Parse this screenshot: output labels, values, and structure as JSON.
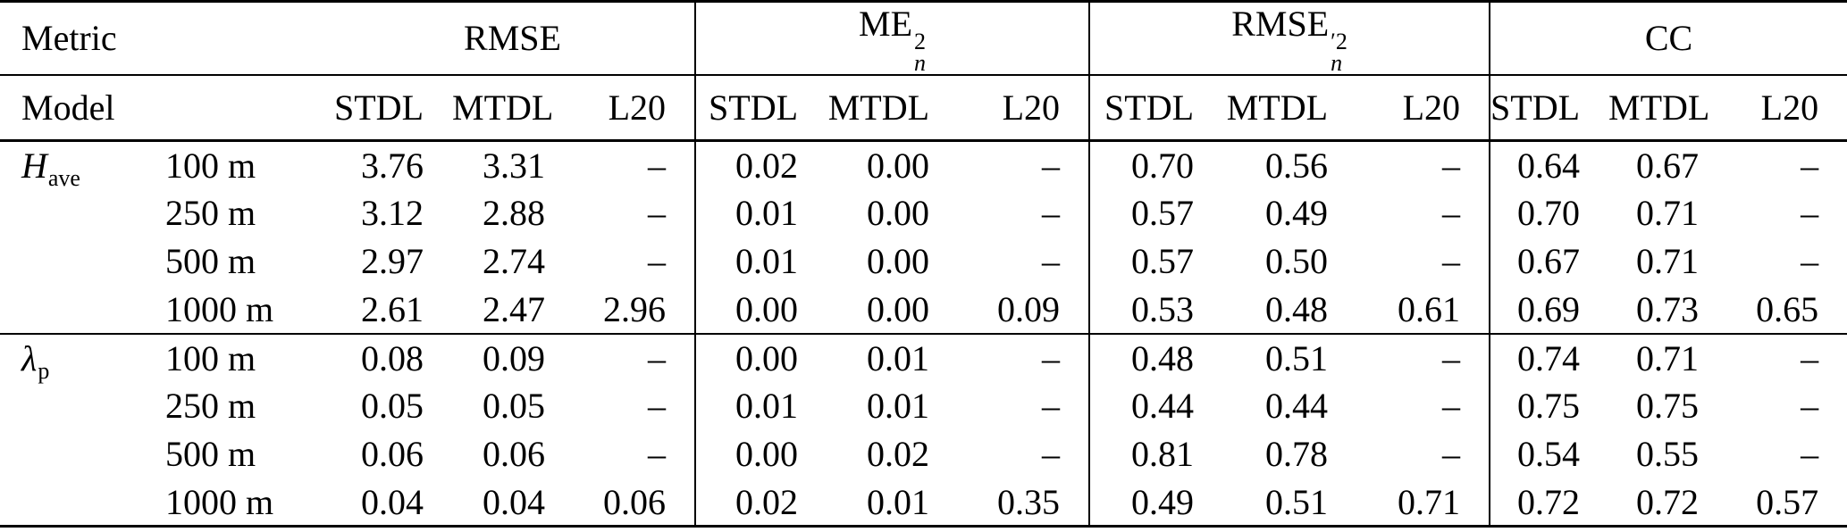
{
  "table": {
    "header": {
      "metric_label": "Metric",
      "model_label": "Model",
      "groups": [
        {
          "id": "rmse",
          "base": "RMSE",
          "prime": "",
          "sup": "",
          "sub": ""
        },
        {
          "id": "me2n",
          "base": "ME",
          "prime": "",
          "sup": "2",
          "sub": "n"
        },
        {
          "id": "rmse2n",
          "base": "RMSE",
          "prime": "′",
          "sup": "2",
          "sub": "n"
        },
        {
          "id": "cc",
          "base": "CC",
          "prime": "",
          "sup": "",
          "sub": ""
        }
      ],
      "sub_columns": [
        "STDL",
        "MTDL",
        "L20"
      ]
    },
    "sections": [
      {
        "metric": {
          "id": "h-ave",
          "base": "H",
          "sub": "ave",
          "italic": true
        },
        "rows": [
          {
            "resolution": "100 m",
            "values": [
              [
                "3.76",
                "3.31",
                "–"
              ],
              [
                "0.02",
                "0.00",
                "–"
              ],
              [
                "0.70",
                "0.56",
                "–"
              ],
              [
                "0.64",
                "0.67",
                "–"
              ]
            ]
          },
          {
            "resolution": "250 m",
            "values": [
              [
                "3.12",
                "2.88",
                "–"
              ],
              [
                "0.01",
                "0.00",
                "–"
              ],
              [
                "0.57",
                "0.49",
                "–"
              ],
              [
                "0.70",
                "0.71",
                "–"
              ]
            ]
          },
          {
            "resolution": "500 m",
            "values": [
              [
                "2.97",
                "2.74",
                "–"
              ],
              [
                "0.01",
                "0.00",
                "–"
              ],
              [
                "0.57",
                "0.50",
                "–"
              ],
              [
                "0.67",
                "0.71",
                "–"
              ]
            ]
          },
          {
            "resolution": "1000 m",
            "values": [
              [
                "2.61",
                "2.47",
                "2.96"
              ],
              [
                "0.00",
                "0.00",
                "0.09"
              ],
              [
                "0.53",
                "0.48",
                "0.61"
              ],
              [
                "0.69",
                "0.73",
                "0.65"
              ]
            ]
          }
        ]
      },
      {
        "metric": {
          "id": "lambda-p",
          "base": "λ",
          "sub": "p",
          "italic": true
        },
        "rows": [
          {
            "resolution": "100 m",
            "values": [
              [
                "0.08",
                "0.09",
                "–"
              ],
              [
                "0.00",
                "0.01",
                "–"
              ],
              [
                "0.48",
                "0.51",
                "–"
              ],
              [
                "0.74",
                "0.71",
                "–"
              ]
            ]
          },
          {
            "resolution": "250 m",
            "values": [
              [
                "0.05",
                "0.05",
                "–"
              ],
              [
                "0.01",
                "0.01",
                "–"
              ],
              [
                "0.44",
                "0.44",
                "–"
              ],
              [
                "0.75",
                "0.75",
                "–"
              ]
            ]
          },
          {
            "resolution": "500 m",
            "values": [
              [
                "0.06",
                "0.06",
                "–"
              ],
              [
                "0.00",
                "0.02",
                "–"
              ],
              [
                "0.81",
                "0.78",
                "–"
              ],
              [
                "0.54",
                "0.55",
                "–"
              ]
            ]
          },
          {
            "resolution": "1000 m",
            "values": [
              [
                "0.04",
                "0.04",
                "0.06"
              ],
              [
                "0.02",
                "0.01",
                "0.35"
              ],
              [
                "0.49",
                "0.51",
                "0.71"
              ],
              [
                "0.72",
                "0.72",
                "0.57"
              ]
            ]
          }
        ]
      }
    ]
  }
}
